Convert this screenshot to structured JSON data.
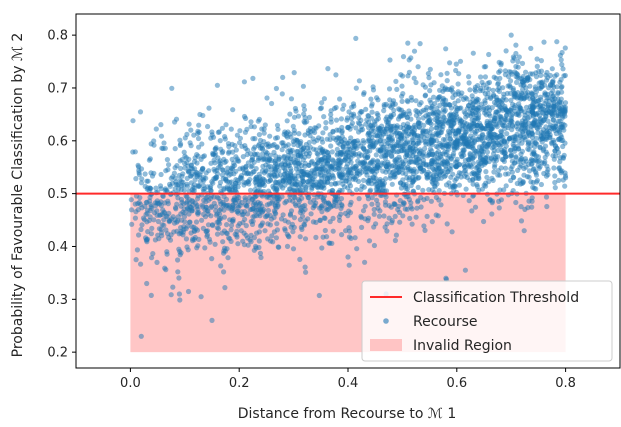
{
  "chart_data": {
    "type": "scatter",
    "xlabel": "Distance from Recourse to ℳ 1",
    "ylabel": "Probability of Favourable Classification by ℳ 2",
    "xlim": [
      -0.1,
      0.9
    ],
    "ylim": [
      0.17,
      0.84
    ],
    "xticks": [
      "0.0",
      "0.2",
      "0.4",
      "0.6",
      "0.8"
    ],
    "xtick_values": [
      0.0,
      0.2,
      0.4,
      0.6,
      0.8
    ],
    "yticks": [
      "0.2",
      "0.3",
      "0.4",
      "0.5",
      "0.6",
      "0.7",
      "0.8"
    ],
    "ytick_values": [
      0.2,
      0.3,
      0.4,
      0.5,
      0.6,
      0.7,
      0.8
    ],
    "grid": false,
    "legend_position": "bottom-right",
    "threshold": {
      "name": "Classification Threshold",
      "y": 0.5,
      "color": "#ff2a2a"
    },
    "invalid_region": {
      "name": "Invalid Region",
      "x_range": [
        0.0,
        0.8
      ],
      "y_range": [
        0.2,
        0.5
      ],
      "color": "#ffb3b3"
    },
    "series": [
      {
        "name": "Recourse",
        "color": "#1f77b4",
        "x_range": [
          0.0,
          0.8
        ],
        "trend_intercept": 0.47,
        "trend_slope": 0.22,
        "approx_count": 3600,
        "sample_points": [
          [
            0.02,
            0.23
          ],
          [
            0.15,
            0.26
          ],
          [
            0.03,
            0.33
          ],
          [
            0.09,
            0.31
          ],
          [
            0.13,
            0.305
          ],
          [
            0.28,
            0.72
          ],
          [
            0.51,
            0.785
          ],
          [
            0.7,
            0.8
          ],
          [
            0.16,
            0.705
          ],
          [
            0.26,
            0.42
          ],
          [
            0.4,
            0.38
          ],
          [
            0.58,
            0.34
          ],
          [
            0.47,
            0.31
          ],
          [
            0.8,
            0.53
          ]
        ]
      }
    ]
  }
}
